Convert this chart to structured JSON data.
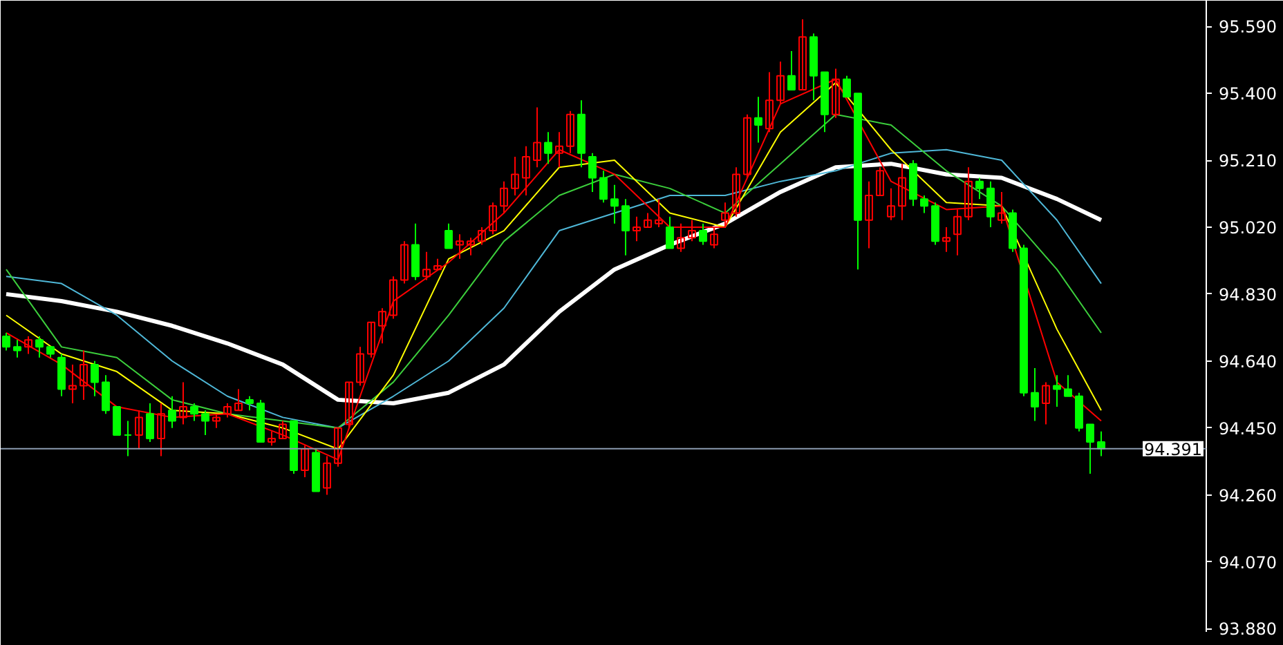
{
  "chart_data": {
    "type": "candlestick",
    "categories": [
      null,
      null,
      null,
      null,
      null,
      null,
      null,
      null,
      null,
      null,
      null,
      null,
      null,
      null,
      null,
      null,
      null,
      null,
      null,
      null,
      null,
      null,
      null,
      null,
      null,
      null,
      null,
      null,
      null,
      null,
      null,
      null,
      null,
      null,
      null,
      null,
      null,
      null,
      null,
      null,
      null,
      null,
      null,
      null,
      null,
      null,
      null,
      null,
      null,
      null,
      null,
      null,
      null,
      null,
      null,
      null,
      null,
      null,
      null,
      null,
      null,
      null,
      null,
      null,
      null,
      null,
      null,
      null,
      null,
      null,
      null,
      null,
      null,
      null,
      null,
      null,
      null,
      null,
      null,
      null,
      null,
      null,
      null,
      null,
      null,
      null,
      null,
      null,
      null,
      null,
      null,
      null,
      null,
      null,
      null,
      null,
      null,
      null,
      null,
      null,
      null,
      null,
      null,
      null,
      null,
      null,
      null,
      null,
      null
    ],
    "ohlc": [
      [
        94.71,
        94.72,
        94.67,
        94.68
      ],
      [
        94.68,
        94.7,
        94.65,
        94.67
      ],
      [
        94.68,
        94.71,
        94.66,
        94.7
      ],
      [
        94.7,
        94.71,
        94.65,
        94.68
      ],
      [
        94.68,
        94.68,
        94.65,
        94.66
      ],
      [
        94.65,
        94.66,
        94.54,
        94.56
      ],
      [
        94.56,
        94.63,
        94.52,
        94.57
      ],
      [
        94.57,
        94.67,
        94.53,
        94.63
      ],
      [
        94.63,
        94.64,
        94.54,
        94.58
      ],
      [
        94.58,
        94.6,
        94.49,
        94.5
      ],
      [
        94.51,
        94.51,
        94.43,
        94.43
      ],
      [
        94.43,
        94.47,
        94.37,
        94.43
      ],
      [
        94.43,
        94.5,
        94.39,
        94.48
      ],
      [
        94.49,
        94.52,
        94.41,
        94.42
      ],
      [
        94.42,
        94.52,
        94.37,
        94.49
      ],
      [
        94.5,
        94.54,
        94.45,
        94.47
      ],
      [
        94.48,
        94.58,
        94.46,
        94.51
      ],
      [
        94.51,
        94.52,
        94.47,
        94.49
      ],
      [
        94.49,
        94.5,
        94.43,
        94.47
      ],
      [
        94.47,
        94.49,
        94.45,
        94.48
      ],
      [
        94.49,
        94.52,
        94.48,
        94.51
      ],
      [
        94.5,
        94.56,
        94.5,
        94.52
      ],
      [
        94.53,
        94.54,
        94.5,
        94.52
      ],
      [
        94.52,
        94.53,
        94.41,
        94.41
      ],
      [
        94.41,
        94.44,
        94.4,
        94.42
      ],
      [
        94.42,
        94.47,
        94.42,
        94.46
      ],
      [
        94.47,
        94.47,
        94.32,
        94.33
      ],
      [
        94.33,
        94.4,
        94.31,
        94.39
      ],
      [
        94.38,
        94.39,
        94.27,
        94.27
      ],
      [
        94.28,
        94.37,
        94.26,
        94.35
      ],
      [
        94.35,
        94.45,
        94.34,
        94.45
      ],
      [
        94.46,
        94.58,
        94.45,
        94.58
      ],
      [
        94.58,
        94.68,
        94.57,
        94.66
      ],
      [
        94.66,
        94.75,
        94.65,
        94.75
      ],
      [
        94.74,
        94.79,
        94.69,
        94.78
      ],
      [
        94.77,
        94.88,
        94.76,
        94.87
      ],
      [
        94.87,
        94.98,
        94.86,
        94.97
      ],
      [
        94.97,
        95.03,
        94.87,
        94.88
      ],
      [
        94.88,
        94.95,
        94.87,
        94.9
      ],
      [
        94.9,
        94.93,
        94.9,
        94.91
      ],
      [
        95.01,
        95.03,
        94.96,
        94.96
      ],
      [
        94.97,
        95.0,
        94.93,
        94.98
      ],
      [
        94.97,
        94.99,
        94.94,
        94.98
      ],
      [
        94.98,
        95.02,
        94.97,
        95.01
      ],
      [
        95.01,
        95.09,
        95.0,
        95.08
      ],
      [
        95.08,
        95.15,
        95.06,
        95.13
      ],
      [
        95.13,
        95.22,
        95.11,
        95.17
      ],
      [
        95.16,
        95.25,
        95.11,
        95.22
      ],
      [
        95.21,
        95.36,
        95.19,
        95.26
      ],
      [
        95.26,
        95.29,
        95.2,
        95.23
      ],
      [
        95.23,
        95.29,
        95.19,
        95.25
      ],
      [
        95.25,
        95.35,
        95.23,
        95.34
      ],
      [
        95.34,
        95.38,
        95.19,
        95.23
      ],
      [
        95.22,
        95.23,
        95.12,
        95.16
      ],
      [
        95.16,
        95.18,
        95.09,
        95.1
      ],
      [
        95.1,
        95.14,
        95.03,
        95.08
      ],
      [
        95.08,
        95.1,
        94.94,
        95.01
      ],
      [
        95.01,
        95.05,
        94.98,
        95.02
      ],
      [
        95.02,
        95.06,
        95.02,
        95.04
      ],
      [
        95.03,
        95.1,
        95.02,
        95.04
      ],
      [
        95.02,
        95.05,
        94.96,
        94.96
      ],
      [
        94.96,
        95.03,
        94.95,
        94.99
      ],
      [
        94.99,
        95.04,
        94.98,
        95.01
      ],
      [
        95.01,
        95.03,
        94.97,
        94.98
      ],
      [
        94.97,
        95.02,
        94.96,
        95.0
      ],
      [
        95.04,
        95.09,
        95.02,
        95.06
      ],
      [
        95.06,
        95.19,
        95.05,
        95.17
      ],
      [
        95.17,
        95.34,
        95.16,
        95.33
      ],
      [
        95.33,
        95.39,
        95.26,
        95.31
      ],
      [
        95.3,
        95.46,
        95.29,
        95.38
      ],
      [
        95.38,
        95.49,
        95.37,
        95.45
      ],
      [
        95.45,
        95.52,
        95.41,
        95.41
      ],
      [
        95.41,
        95.61,
        95.41,
        95.56
      ],
      [
        95.56,
        95.57,
        95.38,
        95.45
      ],
      [
        95.46,
        95.46,
        95.29,
        95.34
      ],
      [
        95.34,
        95.47,
        95.33,
        95.44
      ],
      [
        95.44,
        95.45,
        95.39,
        95.39
      ],
      [
        95.4,
        95.4,
        94.9,
        95.04
      ],
      [
        95.04,
        95.15,
        94.96,
        95.11
      ],
      [
        95.11,
        95.19,
        95.11,
        95.18
      ],
      [
        95.05,
        95.13,
        95.04,
        95.08
      ],
      [
        95.08,
        95.2,
        95.04,
        95.16
      ],
      [
        95.2,
        95.21,
        95.08,
        95.1
      ],
      [
        95.1,
        95.11,
        95.06,
        95.08
      ],
      [
        95.08,
        95.09,
        94.97,
        94.98
      ],
      [
        94.98,
        95.02,
        94.95,
        94.99
      ],
      [
        95.0,
        95.07,
        94.94,
        95.05
      ],
      [
        95.05,
        95.19,
        95.04,
        95.15
      ],
      [
        95.15,
        95.16,
        95.1,
        95.13
      ],
      [
        95.13,
        95.15,
        95.02,
        95.05
      ],
      [
        95.04,
        95.12,
        95.03,
        95.06
      ],
      [
        95.06,
        95.07,
        94.95,
        94.96
      ],
      [
        94.96,
        94.97,
        94.54,
        94.55
      ],
      [
        94.55,
        94.62,
        94.47,
        94.51
      ],
      [
        94.52,
        94.58,
        94.46,
        94.57
      ],
      [
        94.57,
        94.6,
        94.51,
        94.56
      ],
      [
        94.56,
        94.6,
        94.54,
        94.54
      ],
      [
        94.54,
        94.55,
        94.44,
        94.45
      ],
      [
        94.46,
        94.46,
        94.32,
        94.41
      ],
      [
        94.41,
        94.44,
        94.37,
        94.391
      ],
      null,
      null,
      null,
      null,
      null,
      null,
      null,
      null,
      null
    ],
    "colors": [
      "#00ff00",
      "#00ff00",
      "#ff0000",
      "#00ff00",
      "#00ff00",
      "#00ff00",
      "#ff0000",
      "#ff0000",
      "#00ff00",
      "#00ff00",
      "#00ff00",
      "#00ff00",
      "#ff0000",
      "#00ff00",
      "#ff0000",
      "#00ff00",
      "#ff0000",
      "#00ff00",
      "#00ff00",
      "#ff0000",
      "#ff0000",
      "#ff0000",
      "#00ff00",
      "#00ff00",
      "#ff0000",
      "#ff0000",
      "#00ff00",
      "#ff0000",
      "#00ff00",
      "#ff0000",
      "#ff0000",
      "#ff0000",
      "#ff0000",
      "#ff0000",
      "#ff0000",
      "#ff0000",
      "#ff0000",
      "#00ff00",
      "#ff0000",
      "#ff0000",
      "#00ff00",
      "#ff0000",
      "#ff0000",
      "#ff0000",
      "#ff0000",
      "#ff0000",
      "#ff0000",
      "#ff0000",
      "#ff0000",
      "#00ff00",
      "#ff0000",
      "#ff0000",
      "#00ff00",
      "#00ff00",
      "#00ff00",
      "#00ff00",
      "#00ff00",
      "#ff0000",
      "#ff0000",
      "#ff0000",
      "#00ff00",
      "#ff0000",
      "#ff0000",
      "#00ff00",
      "#ff0000",
      "#ff0000",
      "#ff0000",
      "#ff0000",
      "#00ff00",
      "#ff0000",
      "#ff0000",
      "#00ff00",
      "#ff0000",
      "#00ff00",
      "#00ff00",
      "#ff0000",
      "#00ff00",
      "#00ff00",
      "#ff0000",
      "#ff0000",
      "#ff0000",
      "#ff0000",
      "#00ff00",
      "#00ff00",
      "#00ff00",
      "#ff0000",
      "#ff0000",
      "#ff0000",
      "#00ff00",
      "#00ff00",
      "#ff0000",
      "#00ff00",
      "#00ff00",
      "#00ff00",
      "#ff0000",
      "#00ff00",
      "#00ff00",
      "#00ff00",
      "#00ff00",
      "#00ff00",
      null,
      null,
      null,
      null,
      null,
      null,
      null,
      null,
      null
    ],
    "series": [
      {
        "type": "line",
        "color": "#ffffff",
        "values": [
          94.83,
          null,
          null,
          null,
          null,
          94.81,
          null,
          null,
          null,
          null,
          94.78,
          null,
          null,
          null,
          null,
          94.74,
          null,
          null,
          null,
          null,
          94.69,
          null,
          null,
          null,
          null,
          94.63,
          null,
          null,
          null,
          null,
          94.53,
          null,
          null,
          null,
          null,
          94.52,
          null,
          null,
          null,
          null,
          94.55,
          null,
          null,
          null,
          null,
          94.63,
          null,
          null,
          null,
          null,
          94.78,
          null,
          null,
          null,
          null,
          94.9,
          null,
          null,
          null,
          null,
          94.97,
          null,
          null,
          null,
          null,
          95.03,
          null,
          null,
          null,
          null,
          95.12,
          null,
          null,
          null,
          null,
          95.19,
          null,
          null,
          null,
          null,
          95.2,
          null,
          null,
          null,
          null,
          95.17,
          null,
          null,
          null,
          null,
          95.16,
          null,
          null,
          null,
          null,
          95.1,
          null,
          null,
          null,
          95.04,
          null,
          null,
          null,
          null,
          null,
          null,
          null,
          null,
          null
        ]
      },
      {
        "type": "line",
        "color": "#4fb8d8",
        "values": [
          94.88,
          null,
          null,
          null,
          null,
          94.86,
          null,
          null,
          null,
          null,
          94.77,
          null,
          null,
          null,
          null,
          94.64,
          null,
          null,
          null,
          null,
          94.54,
          null,
          null,
          null,
          null,
          94.48,
          null,
          null,
          null,
          null,
          94.45,
          null,
          null,
          null,
          null,
          94.54,
          null,
          null,
          null,
          null,
          94.64,
          null,
          null,
          null,
          null,
          94.79,
          null,
          null,
          null,
          null,
          95.01,
          null,
          null,
          null,
          null,
          95.06,
          null,
          null,
          null,
          null,
          95.11,
          null,
          null,
          null,
          null,
          95.11,
          null,
          null,
          null,
          null,
          95.15,
          null,
          null,
          null,
          null,
          95.18,
          null,
          null,
          null,
          null,
          95.23,
          null,
          null,
          null,
          null,
          95.24,
          null,
          null,
          null,
          null,
          95.21,
          null,
          null,
          null,
          null,
          95.04,
          null,
          null,
          null,
          94.86,
          null,
          null,
          null,
          null,
          null,
          null,
          null,
          null,
          null
        ]
      },
      {
        "type": "line",
        "color": "#3ccf3c",
        "values": [
          94.9,
          null,
          null,
          null,
          null,
          94.68,
          null,
          null,
          null,
          null,
          94.65,
          null,
          null,
          null,
          null,
          94.53,
          null,
          null,
          null,
          null,
          94.49,
          null,
          null,
          null,
          null,
          94.47,
          null,
          null,
          null,
          null,
          94.45,
          null,
          null,
          null,
          null,
          94.58,
          null,
          null,
          null,
          null,
          94.77,
          null,
          null,
          null,
          null,
          94.98,
          null,
          null,
          null,
          null,
          95.11,
          null,
          null,
          null,
          null,
          95.17,
          null,
          null,
          null,
          null,
          95.13,
          null,
          null,
          null,
          null,
          95.06,
          null,
          null,
          null,
          null,
          95.2,
          null,
          null,
          null,
          null,
          95.34,
          null,
          null,
          null,
          null,
          95.31,
          null,
          null,
          null,
          null,
          95.18,
          null,
          null,
          null,
          null,
          95.08,
          null,
          null,
          null,
          null,
          94.9,
          null,
          null,
          null,
          94.72,
          null,
          null,
          null,
          null,
          null,
          null,
          null,
          null,
          null
        ]
      },
      {
        "type": "line",
        "color": "#ffff00",
        "values": [
          94.77,
          null,
          null,
          null,
          null,
          94.66,
          null,
          null,
          null,
          null,
          94.61,
          null,
          null,
          null,
          null,
          94.5,
          null,
          null,
          null,
          null,
          94.49,
          null,
          null,
          null,
          null,
          94.45,
          null,
          null,
          null,
          null,
          94.39,
          null,
          null,
          null,
          null,
          94.6,
          null,
          null,
          null,
          null,
          94.93,
          null,
          null,
          null,
          null,
          95.01,
          null,
          null,
          null,
          null,
          95.19,
          null,
          null,
          null,
          null,
          95.21,
          null,
          null,
          null,
          null,
          95.06,
          null,
          null,
          null,
          null,
          95.02,
          null,
          null,
          null,
          null,
          95.29,
          null,
          null,
          null,
          null,
          95.43,
          null,
          null,
          null,
          null,
          95.24,
          null,
          null,
          null,
          null,
          95.09,
          null,
          null,
          null,
          null,
          95.08,
          null,
          null,
          null,
          null,
          94.73,
          null,
          null,
          null,
          94.5,
          null,
          null,
          null,
          null,
          null,
          null,
          null,
          null,
          null
        ]
      },
      {
        "type": "line",
        "color": "#ff0000",
        "values": [
          94.72,
          null,
          null,
          null,
          null,
          94.63,
          null,
          null,
          null,
          null,
          94.51,
          null,
          null,
          null,
          null,
          94.48,
          null,
          null,
          null,
          null,
          94.49,
          null,
          null,
          null,
          null,
          94.43,
          null,
          null,
          null,
          null,
          94.36,
          null,
          null,
          null,
          null,
          94.81,
          null,
          null,
          null,
          null,
          94.92,
          null,
          null,
          null,
          null,
          95.06,
          null,
          null,
          null,
          null,
          95.24,
          null,
          null,
          null,
          null,
          95.17,
          null,
          null,
          null,
          null,
          95.02,
          null,
          null,
          null,
          null,
          95.02,
          null,
          null,
          null,
          null,
          95.37,
          null,
          null,
          null,
          null,
          95.44,
          null,
          null,
          null,
          null,
          95.15,
          null,
          null,
          null,
          null,
          95.07,
          null,
          null,
          null,
          null,
          95.08,
          null,
          null,
          null,
          null,
          94.58,
          null,
          null,
          null,
          94.47,
          null,
          null,
          null,
          null,
          null,
          null,
          null,
          null,
          null
        ]
      }
    ],
    "ylim": [
      93.871,
      95.663
    ],
    "yticks": [
      {
        "value": 93.88,
        "label": "93.880"
      },
      {
        "value": 94.07,
        "label": "94.070"
      },
      {
        "value": 94.26,
        "label": "94.260"
      },
      {
        "value": 94.45,
        "label": "94.450"
      },
      {
        "value": 94.64,
        "label": "94.640"
      },
      {
        "value": 94.83,
        "label": "94.830"
      },
      {
        "value": 95.02,
        "label": "95.020"
      },
      {
        "value": 95.21,
        "label": "95.210"
      },
      {
        "value": 95.4,
        "label": "95.400"
      },
      {
        "value": 95.59,
        "label": "95.590"
      }
    ],
    "ref_lines": [
      {
        "axis": "y",
        "value": 94.391,
        "label": "94.391",
        "color": "#8c9cb0"
      }
    ],
    "tick_labels": "y"
  }
}
